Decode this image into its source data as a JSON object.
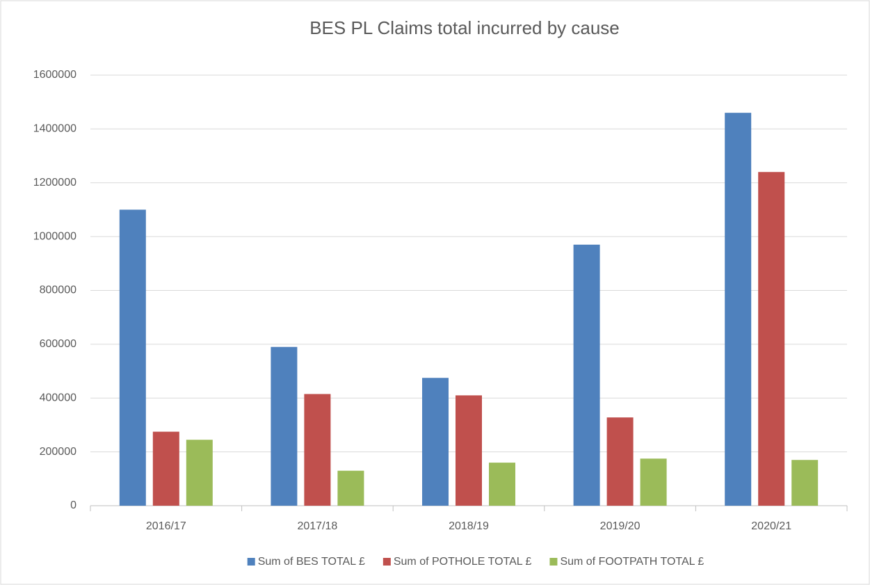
{
  "chart_data": {
    "type": "bar",
    "title": "BES PL Claims total incurred by cause",
    "categories": [
      "2016/17",
      "2017/18",
      "2018/19",
      "2019/20",
      "2020/21"
    ],
    "series": [
      {
        "name": "Sum of BES TOTAL £",
        "color": "#4f81bd",
        "values": [
          1100000,
          590000,
          475000,
          970000,
          1460000
        ]
      },
      {
        "name": "Sum of POTHOLE TOTAL £",
        "color": "#c0504d",
        "values": [
          275000,
          415000,
          410000,
          328000,
          1240000
        ]
      },
      {
        "name": "Sum of FOOTPATH TOTAL £",
        "color": "#9bbb59",
        "values": [
          245000,
          130000,
          160000,
          175000,
          170000
        ]
      }
    ],
    "ylim": [
      0,
      1600000
    ],
    "yticks": [
      0,
      200000,
      400000,
      600000,
      800000,
      1000000,
      1200000,
      1400000,
      1600000
    ],
    "grid": true,
    "legend": "bottom"
  }
}
